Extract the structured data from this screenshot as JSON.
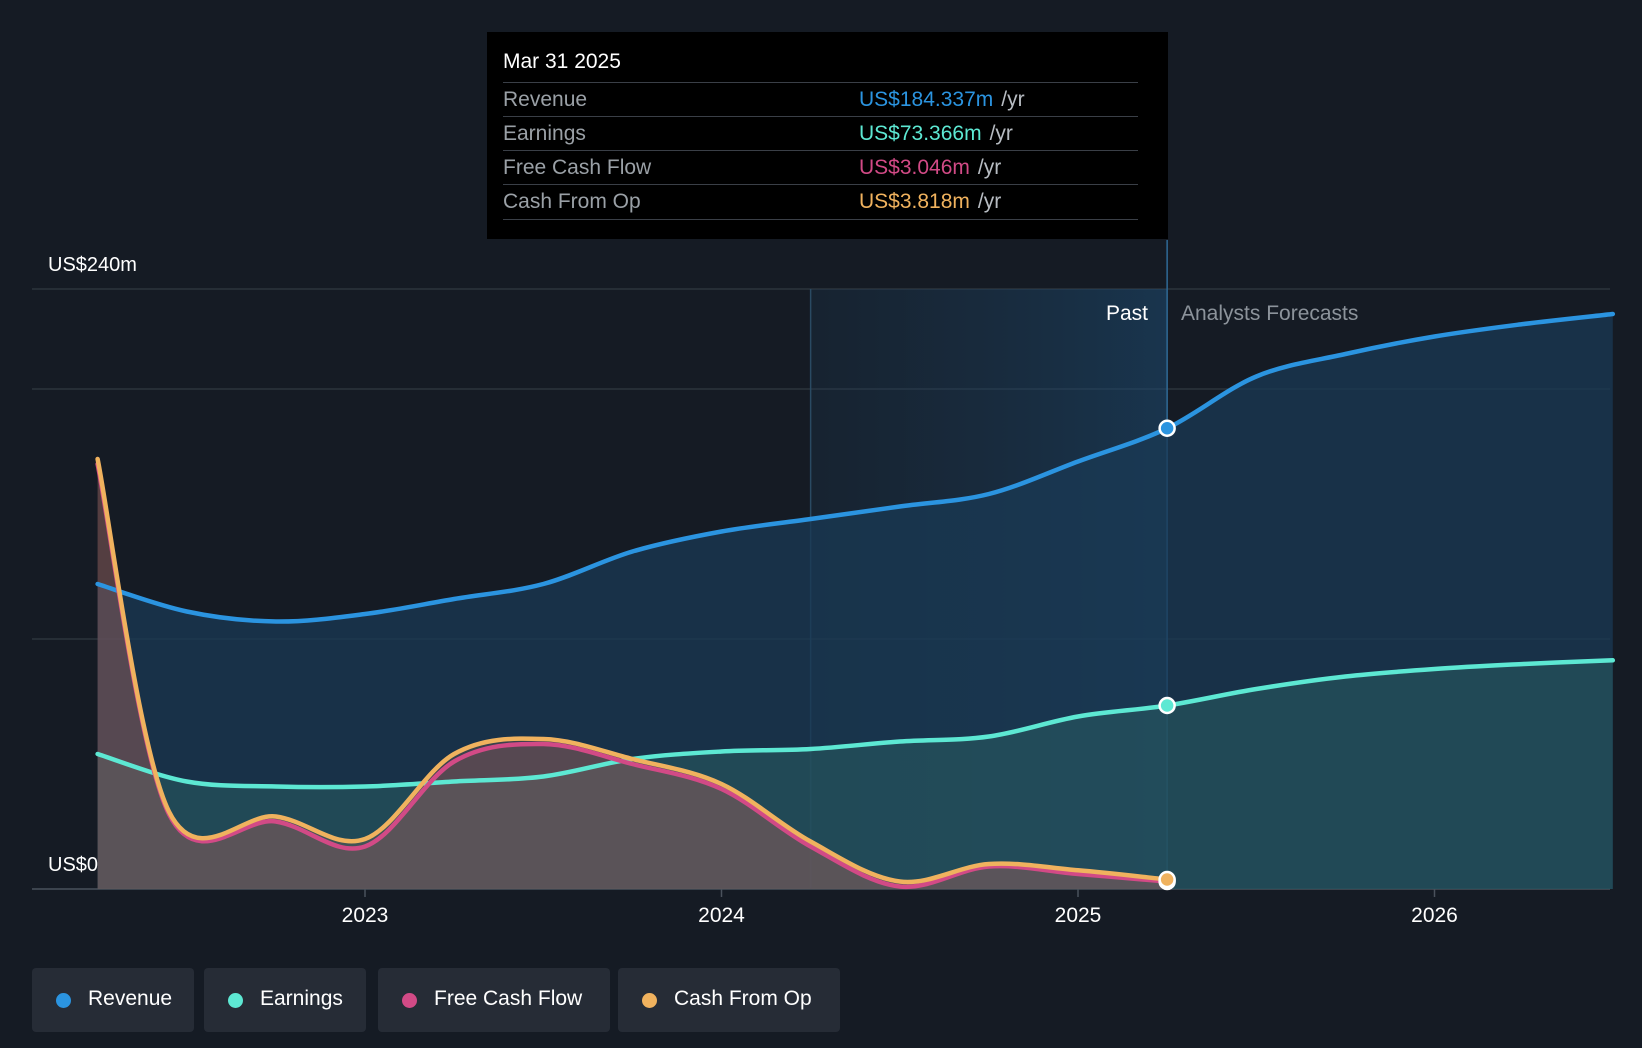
{
  "tooltip": {
    "date": "Mar 31 2025",
    "rows": [
      {
        "label": "Revenue",
        "value": "US$184.337m",
        "unit": "/yr",
        "color": "#2b94e0"
      },
      {
        "label": "Earnings",
        "value": "US$73.366m",
        "unit": "/yr",
        "color": "#5de8d3"
      },
      {
        "label": "Free Cash Flow",
        "value": "US$3.046m",
        "unit": "/yr",
        "color": "#d24a86"
      },
      {
        "label": "Cash From Op",
        "value": "US$3.818m",
        "unit": "/yr",
        "color": "#f0b25e"
      }
    ]
  },
  "chart_data": {
    "type": "line",
    "y_axis_labels": [
      "US$240m",
      "US$0"
    ],
    "x_ticks": [
      {
        "label": "2023",
        "x": 2023.0
      },
      {
        "label": "2024",
        "x": 2024.0
      },
      {
        "label": "2025",
        "x": 2025.0
      },
      {
        "label": "2026",
        "x": 2026.0
      }
    ],
    "xlim": [
      2022.0,
      2026.5
    ],
    "ylim": [
      0,
      240
    ],
    "gridlines": [
      0,
      100,
      200,
      240
    ],
    "past_label": "Past",
    "forecast_label": "Analysts Forecasts",
    "past_region_start": 2024.25,
    "forecast_start": 2025.25,
    "series": [
      {
        "name": "Revenue",
        "color": "#2b94e0",
        "points": [
          [
            2022.25,
            122
          ],
          [
            2022.5,
            111
          ],
          [
            2022.75,
            107
          ],
          [
            2023.0,
            110
          ],
          [
            2023.25,
            116
          ],
          [
            2023.5,
            122
          ],
          [
            2023.75,
            135
          ],
          [
            2024.0,
            143
          ],
          [
            2024.25,
            148
          ],
          [
            2024.5,
            153
          ],
          [
            2024.75,
            158
          ],
          [
            2025.0,
            171
          ],
          [
            2025.25,
            184.3
          ]
        ],
        "forecast": [
          [
            2025.25,
            184.3
          ],
          [
            2025.5,
            205
          ],
          [
            2025.75,
            214
          ],
          [
            2026.0,
            221
          ],
          [
            2026.25,
            226
          ],
          [
            2026.5,
            230
          ]
        ]
      },
      {
        "name": "Earnings",
        "color": "#5de8d3",
        "points": [
          [
            2022.25,
            54
          ],
          [
            2022.5,
            43
          ],
          [
            2022.75,
            41
          ],
          [
            2023.0,
            41
          ],
          [
            2023.25,
            43
          ],
          [
            2023.5,
            45
          ],
          [
            2023.75,
            52
          ],
          [
            2024.0,
            55
          ],
          [
            2024.25,
            56
          ],
          [
            2024.5,
            59
          ],
          [
            2024.75,
            61
          ],
          [
            2025.0,
            69
          ],
          [
            2025.25,
            73.4
          ]
        ],
        "forecast": [
          [
            2025.25,
            73.4
          ],
          [
            2025.5,
            80
          ],
          [
            2025.75,
            85
          ],
          [
            2026.0,
            88
          ],
          [
            2026.25,
            90
          ],
          [
            2026.5,
            91.5
          ]
        ]
      },
      {
        "name": "Free Cash Flow",
        "color": "#d24a86",
        "points": [
          [
            2022.25,
            170
          ],
          [
            2022.45,
            30
          ],
          [
            2022.75,
            27
          ],
          [
            2023.0,
            17
          ],
          [
            2023.25,
            51
          ],
          [
            2023.5,
            58
          ],
          [
            2023.75,
            50
          ],
          [
            2024.0,
            40
          ],
          [
            2024.25,
            17
          ],
          [
            2024.5,
            1
          ],
          [
            2024.75,
            9
          ],
          [
            2025.0,
            6
          ],
          [
            2025.25,
            3.0
          ]
        ],
        "forecast": []
      },
      {
        "name": "Cash From Op",
        "color": "#f0b25e",
        "points": [
          [
            2022.25,
            172
          ],
          [
            2022.45,
            31
          ],
          [
            2022.75,
            29
          ],
          [
            2023.0,
            20
          ],
          [
            2023.25,
            54
          ],
          [
            2023.5,
            60
          ],
          [
            2023.75,
            52
          ],
          [
            2024.0,
            42
          ],
          [
            2024.25,
            19
          ],
          [
            2024.5,
            3
          ],
          [
            2024.75,
            10
          ],
          [
            2025.0,
            7.5
          ],
          [
            2025.25,
            3.8
          ]
        ],
        "forecast": []
      }
    ]
  },
  "legend": {
    "items": [
      {
        "label": "Revenue",
        "color": "#2b94e0"
      },
      {
        "label": "Earnings",
        "color": "#5de8d3"
      },
      {
        "label": "Free Cash Flow",
        "color": "#d24a86"
      },
      {
        "label": "Cash From Op",
        "color": "#f0b25e"
      }
    ]
  }
}
